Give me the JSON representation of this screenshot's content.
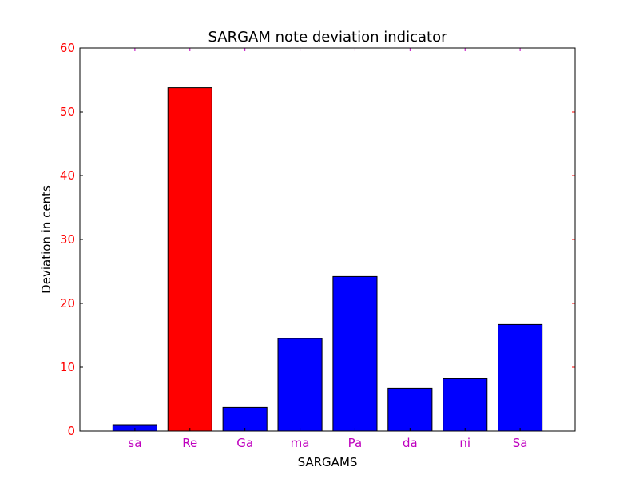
{
  "chart_data": {
    "type": "bar",
    "title": "SARGAM note deviation indicator",
    "xlabel": "SARGAMS",
    "ylabel": "Deviation in cents",
    "categories": [
      "sa",
      "Re",
      "Ga",
      "ma",
      "Pa",
      "da",
      "ni",
      "Sa"
    ],
    "values": [
      1.0,
      53.8,
      3.7,
      14.5,
      24.2,
      6.7,
      8.2,
      16.7
    ],
    "bar_colors": [
      "#0000ff",
      "#ff0000",
      "#0000ff",
      "#0000ff",
      "#0000ff",
      "#0000ff",
      "#0000ff",
      "#0000ff"
    ],
    "ylim": [
      0,
      60
    ],
    "yticks": [
      0,
      10,
      20,
      30,
      40,
      50,
      60
    ],
    "ytick_color": "#ff0000",
    "xtick_color": "#bf00bf",
    "grid": false
  }
}
